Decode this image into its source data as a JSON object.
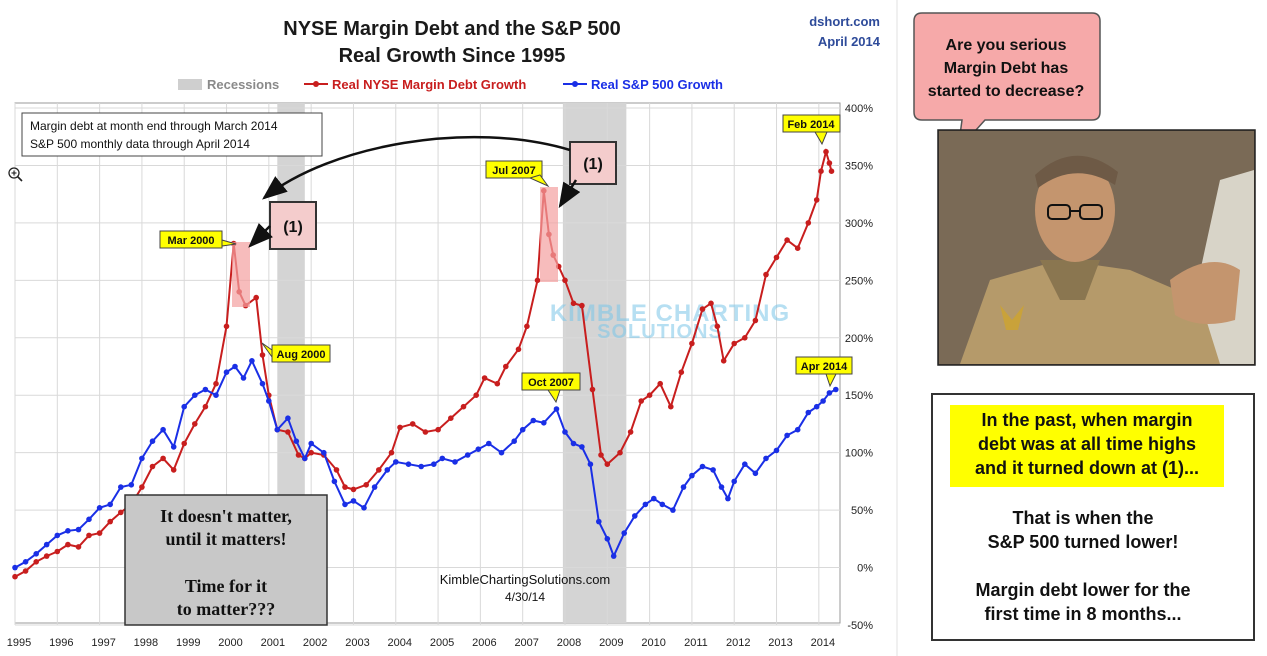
{
  "chart_data": {
    "type": "line",
    "title_line1": "NYSE Margin Debt and the S&P 500",
    "title_line2": "Real Growth Since 1995",
    "source": "dshort.com",
    "date": "April 2014",
    "legend": {
      "recessions": "Recessions",
      "margin": "Real NYSE Margin Debt Growth",
      "sp500": "Real S&P 500 Growth"
    },
    "x_ticks": [
      "1995",
      "1996",
      "1997",
      "1998",
      "1999",
      "2000",
      "2001",
      "2002",
      "2003",
      "2004",
      "2005",
      "2006",
      "2007",
      "2008",
      "2009",
      "2010",
      "2011",
      "2012",
      "2013",
      "2014"
    ],
    "y_ticks": [
      "400%",
      "350%",
      "300%",
      "250%",
      "200%",
      "150%",
      "100%",
      "50%",
      "0%",
      "-50%"
    ],
    "y_range": [
      -50,
      400
    ],
    "x_range": [
      1995.0,
      2014.5
    ],
    "recessions": [
      [
        2001.2,
        2001.85
      ],
      [
        2007.95,
        2009.45
      ]
    ],
    "series": [
      {
        "name": "Real NYSE Margin Debt Growth",
        "color": "#c81e1e",
        "points": [
          [
            1995.0,
            -8
          ],
          [
            1995.25,
            -3
          ],
          [
            1995.5,
            5
          ],
          [
            1995.75,
            10
          ],
          [
            1996.0,
            14
          ],
          [
            1996.25,
            20
          ],
          [
            1996.5,
            18
          ],
          [
            1996.75,
            28
          ],
          [
            1997.0,
            30
          ],
          [
            1997.25,
            40
          ],
          [
            1997.5,
            48
          ],
          [
            1997.75,
            55
          ],
          [
            1998.0,
            70
          ],
          [
            1998.25,
            88
          ],
          [
            1998.5,
            95
          ],
          [
            1998.75,
            85
          ],
          [
            1999.0,
            108
          ],
          [
            1999.25,
            125
          ],
          [
            1999.5,
            140
          ],
          [
            1999.75,
            160
          ],
          [
            2000.0,
            210
          ],
          [
            2000.17,
            282
          ],
          [
            2000.3,
            240
          ],
          [
            2000.45,
            228
          ],
          [
            2000.7,
            235
          ],
          [
            2000.85,
            185
          ],
          [
            2001.0,
            150
          ],
          [
            2001.2,
            120
          ],
          [
            2001.45,
            118
          ],
          [
            2001.7,
            98
          ],
          [
            2001.85,
            95
          ],
          [
            2002.0,
            100
          ],
          [
            2002.3,
            98
          ],
          [
            2002.6,
            85
          ],
          [
            2002.8,
            70
          ],
          [
            2003.0,
            68
          ],
          [
            2003.3,
            72
          ],
          [
            2003.6,
            85
          ],
          [
            2003.9,
            100
          ],
          [
            2004.1,
            122
          ],
          [
            2004.4,
            125
          ],
          [
            2004.7,
            118
          ],
          [
            2005.0,
            120
          ],
          [
            2005.3,
            130
          ],
          [
            2005.6,
            140
          ],
          [
            2005.9,
            150
          ],
          [
            2006.1,
            165
          ],
          [
            2006.4,
            160
          ],
          [
            2006.6,
            175
          ],
          [
            2006.9,
            190
          ],
          [
            2007.1,
            210
          ],
          [
            2007.35,
            250
          ],
          [
            2007.5,
            328
          ],
          [
            2007.62,
            290
          ],
          [
            2007.72,
            272
          ],
          [
            2007.85,
            262
          ],
          [
            2008.0,
            250
          ],
          [
            2008.2,
            230
          ],
          [
            2008.4,
            228
          ],
          [
            2008.65,
            155
          ],
          [
            2008.85,
            98
          ],
          [
            2009.0,
            90
          ],
          [
            2009.3,
            100
          ],
          [
            2009.55,
            118
          ],
          [
            2009.8,
            145
          ],
          [
            2010.0,
            150
          ],
          [
            2010.25,
            160
          ],
          [
            2010.5,
            140
          ],
          [
            2010.75,
            170
          ],
          [
            2011.0,
            195
          ],
          [
            2011.25,
            225
          ],
          [
            2011.45,
            230
          ],
          [
            2011.6,
            210
          ],
          [
            2011.75,
            180
          ],
          [
            2012.0,
            195
          ],
          [
            2012.25,
            200
          ],
          [
            2012.5,
            215
          ],
          [
            2012.75,
            255
          ],
          [
            2013.0,
            270
          ],
          [
            2013.25,
            285
          ],
          [
            2013.5,
            278
          ],
          [
            2013.75,
            300
          ],
          [
            2013.95,
            320
          ],
          [
            2014.05,
            345
          ],
          [
            2014.17,
            362
          ],
          [
            2014.25,
            352
          ],
          [
            2014.3,
            345
          ]
        ]
      },
      {
        "name": "Real S&P 500 Growth",
        "color": "#1a2fe6",
        "points": [
          [
            1995.0,
            0
          ],
          [
            1995.25,
            5
          ],
          [
            1995.5,
            12
          ],
          [
            1995.75,
            20
          ],
          [
            1996.0,
            28
          ],
          [
            1996.25,
            32
          ],
          [
            1996.5,
            33
          ],
          [
            1996.75,
            42
          ],
          [
            1997.0,
            52
          ],
          [
            1997.25,
            55
          ],
          [
            1997.5,
            70
          ],
          [
            1997.75,
            72
          ],
          [
            1998.0,
            95
          ],
          [
            1998.25,
            110
          ],
          [
            1998.5,
            120
          ],
          [
            1998.75,
            105
          ],
          [
            1999.0,
            140
          ],
          [
            1999.25,
            150
          ],
          [
            1999.5,
            155
          ],
          [
            1999.75,
            150
          ],
          [
            2000.0,
            170
          ],
          [
            2000.2,
            175
          ],
          [
            2000.4,
            165
          ],
          [
            2000.6,
            180
          ],
          [
            2000.85,
            160
          ],
          [
            2001.0,
            145
          ],
          [
            2001.2,
            120
          ],
          [
            2001.45,
            130
          ],
          [
            2001.65,
            110
          ],
          [
            2001.85,
            95
          ],
          [
            2002.0,
            108
          ],
          [
            2002.3,
            100
          ],
          [
            2002.55,
            75
          ],
          [
            2002.8,
            55
          ],
          [
            2003.0,
            58
          ],
          [
            2003.25,
            52
          ],
          [
            2003.5,
            70
          ],
          [
            2003.8,
            85
          ],
          [
            2004.0,
            92
          ],
          [
            2004.3,
            90
          ],
          [
            2004.6,
            88
          ],
          [
            2004.9,
            90
          ],
          [
            2005.1,
            95
          ],
          [
            2005.4,
            92
          ],
          [
            2005.7,
            98
          ],
          [
            2005.95,
            103
          ],
          [
            2006.2,
            108
          ],
          [
            2006.5,
            100
          ],
          [
            2006.8,
            110
          ],
          [
            2007.0,
            120
          ],
          [
            2007.25,
            128
          ],
          [
            2007.5,
            126
          ],
          [
            2007.8,
            138
          ],
          [
            2008.0,
            118
          ],
          [
            2008.2,
            108
          ],
          [
            2008.4,
            105
          ],
          [
            2008.6,
            90
          ],
          [
            2008.8,
            40
          ],
          [
            2009.0,
            25
          ],
          [
            2009.15,
            10
          ],
          [
            2009.4,
            30
          ],
          [
            2009.65,
            45
          ],
          [
            2009.9,
            55
          ],
          [
            2010.1,
            60
          ],
          [
            2010.3,
            55
          ],
          [
            2010.55,
            50
          ],
          [
            2010.8,
            70
          ],
          [
            2011.0,
            80
          ],
          [
            2011.25,
            88
          ],
          [
            2011.5,
            85
          ],
          [
            2011.7,
            70
          ],
          [
            2011.85,
            60
          ],
          [
            2012.0,
            75
          ],
          [
            2012.25,
            90
          ],
          [
            2012.5,
            82
          ],
          [
            2012.75,
            95
          ],
          [
            2013.0,
            102
          ],
          [
            2013.25,
            115
          ],
          [
            2013.5,
            120
          ],
          [
            2013.75,
            135
          ],
          [
            2013.95,
            140
          ],
          [
            2014.1,
            145
          ],
          [
            2014.25,
            152
          ],
          [
            2014.4,
            155
          ]
        ]
      }
    ]
  },
  "notes": {
    "line1": "Margin debt at month end through March 2014",
    "line2": "S&P 500 monthly data through April 2014"
  },
  "callouts": {
    "mar2000": "Mar 2000",
    "aug2000": "Aug 2000",
    "jul2007": "Jul 2007",
    "oct2007": "Oct 2007",
    "feb2014": "Feb 2014",
    "apr2014": "Apr 2014",
    "marker1": "(1)",
    "marker2": "(1)"
  },
  "grey_box": {
    "line1": "It doesn't matter,",
    "line2": "until it matters!",
    "line3": "Time for it",
    "line4": "to matter???"
  },
  "credit": {
    "site": "KimbleChartingSolutions.com",
    "date": "4/30/14"
  },
  "watermark": {
    "line1": "KIMBLE CHARTING",
    "line2": "SOLUTIONS"
  },
  "speech_bubble": {
    "line1": "Are you serious",
    "line2": "Margin Debt has",
    "line3": "started to decrease?"
  },
  "right_box": {
    "highlight1": "In the past, when margin",
    "highlight2": "debt was at all time highs",
    "highlight3": "and it turned down at (1)...",
    "line1": "That is when the",
    "line2": "S&P 500 turned lower!",
    "line3": "Margin debt lower for the",
    "line4": "first time in 8 months..."
  },
  "colors": {
    "highlight_yellow": "#ffff00",
    "bubble_pink": "#f6a9a9",
    "grey_box": "#c8c8c8",
    "recession_grey": "#d4d4d4"
  }
}
